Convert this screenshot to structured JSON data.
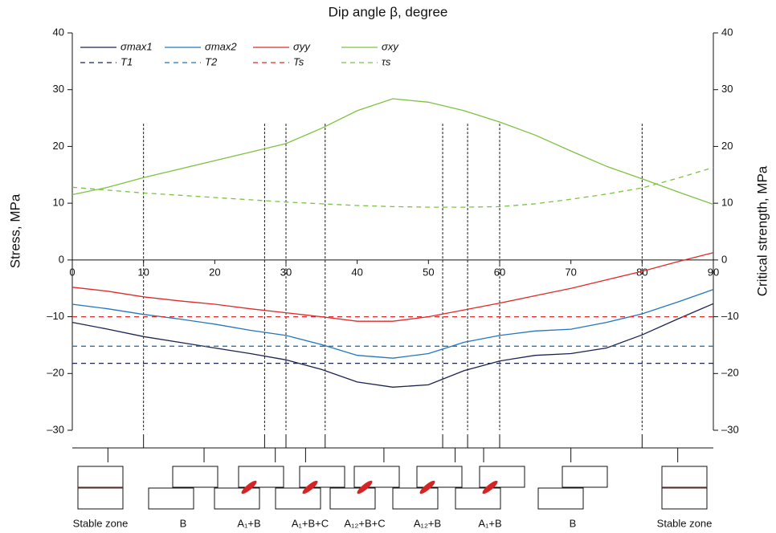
{
  "chart_data": {
    "type": "line",
    "title": "Dip angle β, degree",
    "ylabel": "Stress, MPa",
    "y2label": "Critical strength, MPa",
    "x": [
      0,
      5,
      10,
      15,
      20,
      25,
      30,
      35,
      40,
      45,
      50,
      55,
      60,
      65,
      70,
      75,
      80,
      85,
      90
    ],
    "xlim": [
      0,
      90
    ],
    "xticks": [
      0,
      10,
      20,
      30,
      40,
      50,
      60,
      70,
      80,
      90
    ],
    "ylim": [
      -30,
      40
    ],
    "yticks": [
      {
        "value": -30,
        "label": "–30"
      },
      {
        "value": -20,
        "label": "–20"
      },
      {
        "value": -10,
        "label": "–10"
      },
      0,
      10,
      20,
      30,
      40
    ],
    "y2lim": [
      -30,
      40
    ],
    "y2ticks": [
      {
        "value": -30,
        "label": "–30"
      },
      {
        "value": -20,
        "label": "–20"
      },
      {
        "value": -10,
        "label": "–10"
      },
      0,
      10,
      20,
      30,
      40
    ],
    "series": [
      {
        "name": "σmax1",
        "color": "#1b2350",
        "dash": false,
        "values": [
          -11,
          -12.2,
          -13.5,
          -14.5,
          -15.5,
          -16.5,
          -17.6,
          -19.3,
          -21.5,
          -22.4,
          -22,
          -19.5,
          -17.8,
          -16.8,
          -16.5,
          -15.5,
          -13.2,
          -10.4,
          -7.7
        ]
      },
      {
        "name": "σmax2",
        "color": "#2276c0",
        "dash": false,
        "values": [
          -7.8,
          -8.6,
          -9.6,
          -10.4,
          -11.3,
          -12.4,
          -13.3,
          -14.9,
          -16.8,
          -17.3,
          -16.5,
          -14.5,
          -13.3,
          -12.5,
          -12.2,
          -11,
          -9.5,
          -7.4,
          -5.2
        ]
      },
      {
        "name": "σyy",
        "color": "#e02a2a",
        "dash": false,
        "values": [
          -4.8,
          -5.5,
          -6.5,
          -7.2,
          -7.8,
          -8.6,
          -9.3,
          -10,
          -10.8,
          -10.8,
          -10,
          -8.8,
          -7.6,
          -6.3,
          -5,
          -3.5,
          -2,
          -0.3,
          1.3
        ]
      },
      {
        "name": "σxy",
        "color": "#7dc242",
        "dash": false,
        "values": [
          11.5,
          12.8,
          14.5,
          16,
          17.5,
          19,
          20.5,
          23.2,
          26.3,
          28.4,
          27.8,
          26.3,
          24.3,
          22,
          19.2,
          16.5,
          14.3,
          12,
          9.8
        ]
      },
      {
        "name": "T1",
        "color": "#1b2350",
        "dash": true,
        "axis": "y2",
        "values": [
          -18.2,
          -18.2,
          -18.2,
          -18.2,
          -18.2,
          -18.2,
          -18.2,
          -18.2,
          -18.2,
          -18.2,
          -18.2,
          -18.2,
          -18.2,
          -18.2,
          -18.2,
          -18.2,
          -18.2,
          -18.2,
          -18.2
        ]
      },
      {
        "name": "T2",
        "color": "#2276c0",
        "dash": true,
        "axis": "y2",
        "values": [
          -15.2,
          -15.2,
          -15.2,
          -15.2,
          -15.2,
          -15.2,
          -15.2,
          -15.2,
          -15.2,
          -15.2,
          -15.2,
          -15.2,
          -15.2,
          -15.2,
          -15.2,
          -15.2,
          -15.2,
          -15.2,
          -15.2
        ]
      },
      {
        "name": "Ts",
        "color": "#e02a2a",
        "dash": true,
        "axis": "y2",
        "values": [
          -10,
          -10,
          -10,
          -10,
          -10,
          -10,
          -10,
          -10,
          -10,
          -10,
          -10,
          -10,
          -10,
          -10,
          -10,
          -10,
          -10,
          -10,
          -10
        ]
      },
      {
        "name": "τs",
        "color": "#7dc242",
        "dash": true,
        "axis": "y2",
        "values": [
          12.8,
          12.3,
          11.8,
          11.4,
          11,
          10.6,
          10.2,
          9.9,
          9.6,
          9.4,
          9.3,
          9.3,
          9.4,
          9.9,
          10.7,
          11.6,
          12.7,
          14.4,
          16.3
        ]
      }
    ],
    "zone_boundaries": [
      10,
      27,
      30,
      35.5,
      52,
      55.5,
      60,
      80
    ],
    "zone_boundary_top": 24,
    "zone_labels": [
      "Stable zone",
      "B",
      "A₁+B",
      "A₁+B+C",
      "A₁₂+B+C",
      "A₁₂+B",
      "A₁+B",
      "B",
      "Stable zone"
    ]
  }
}
